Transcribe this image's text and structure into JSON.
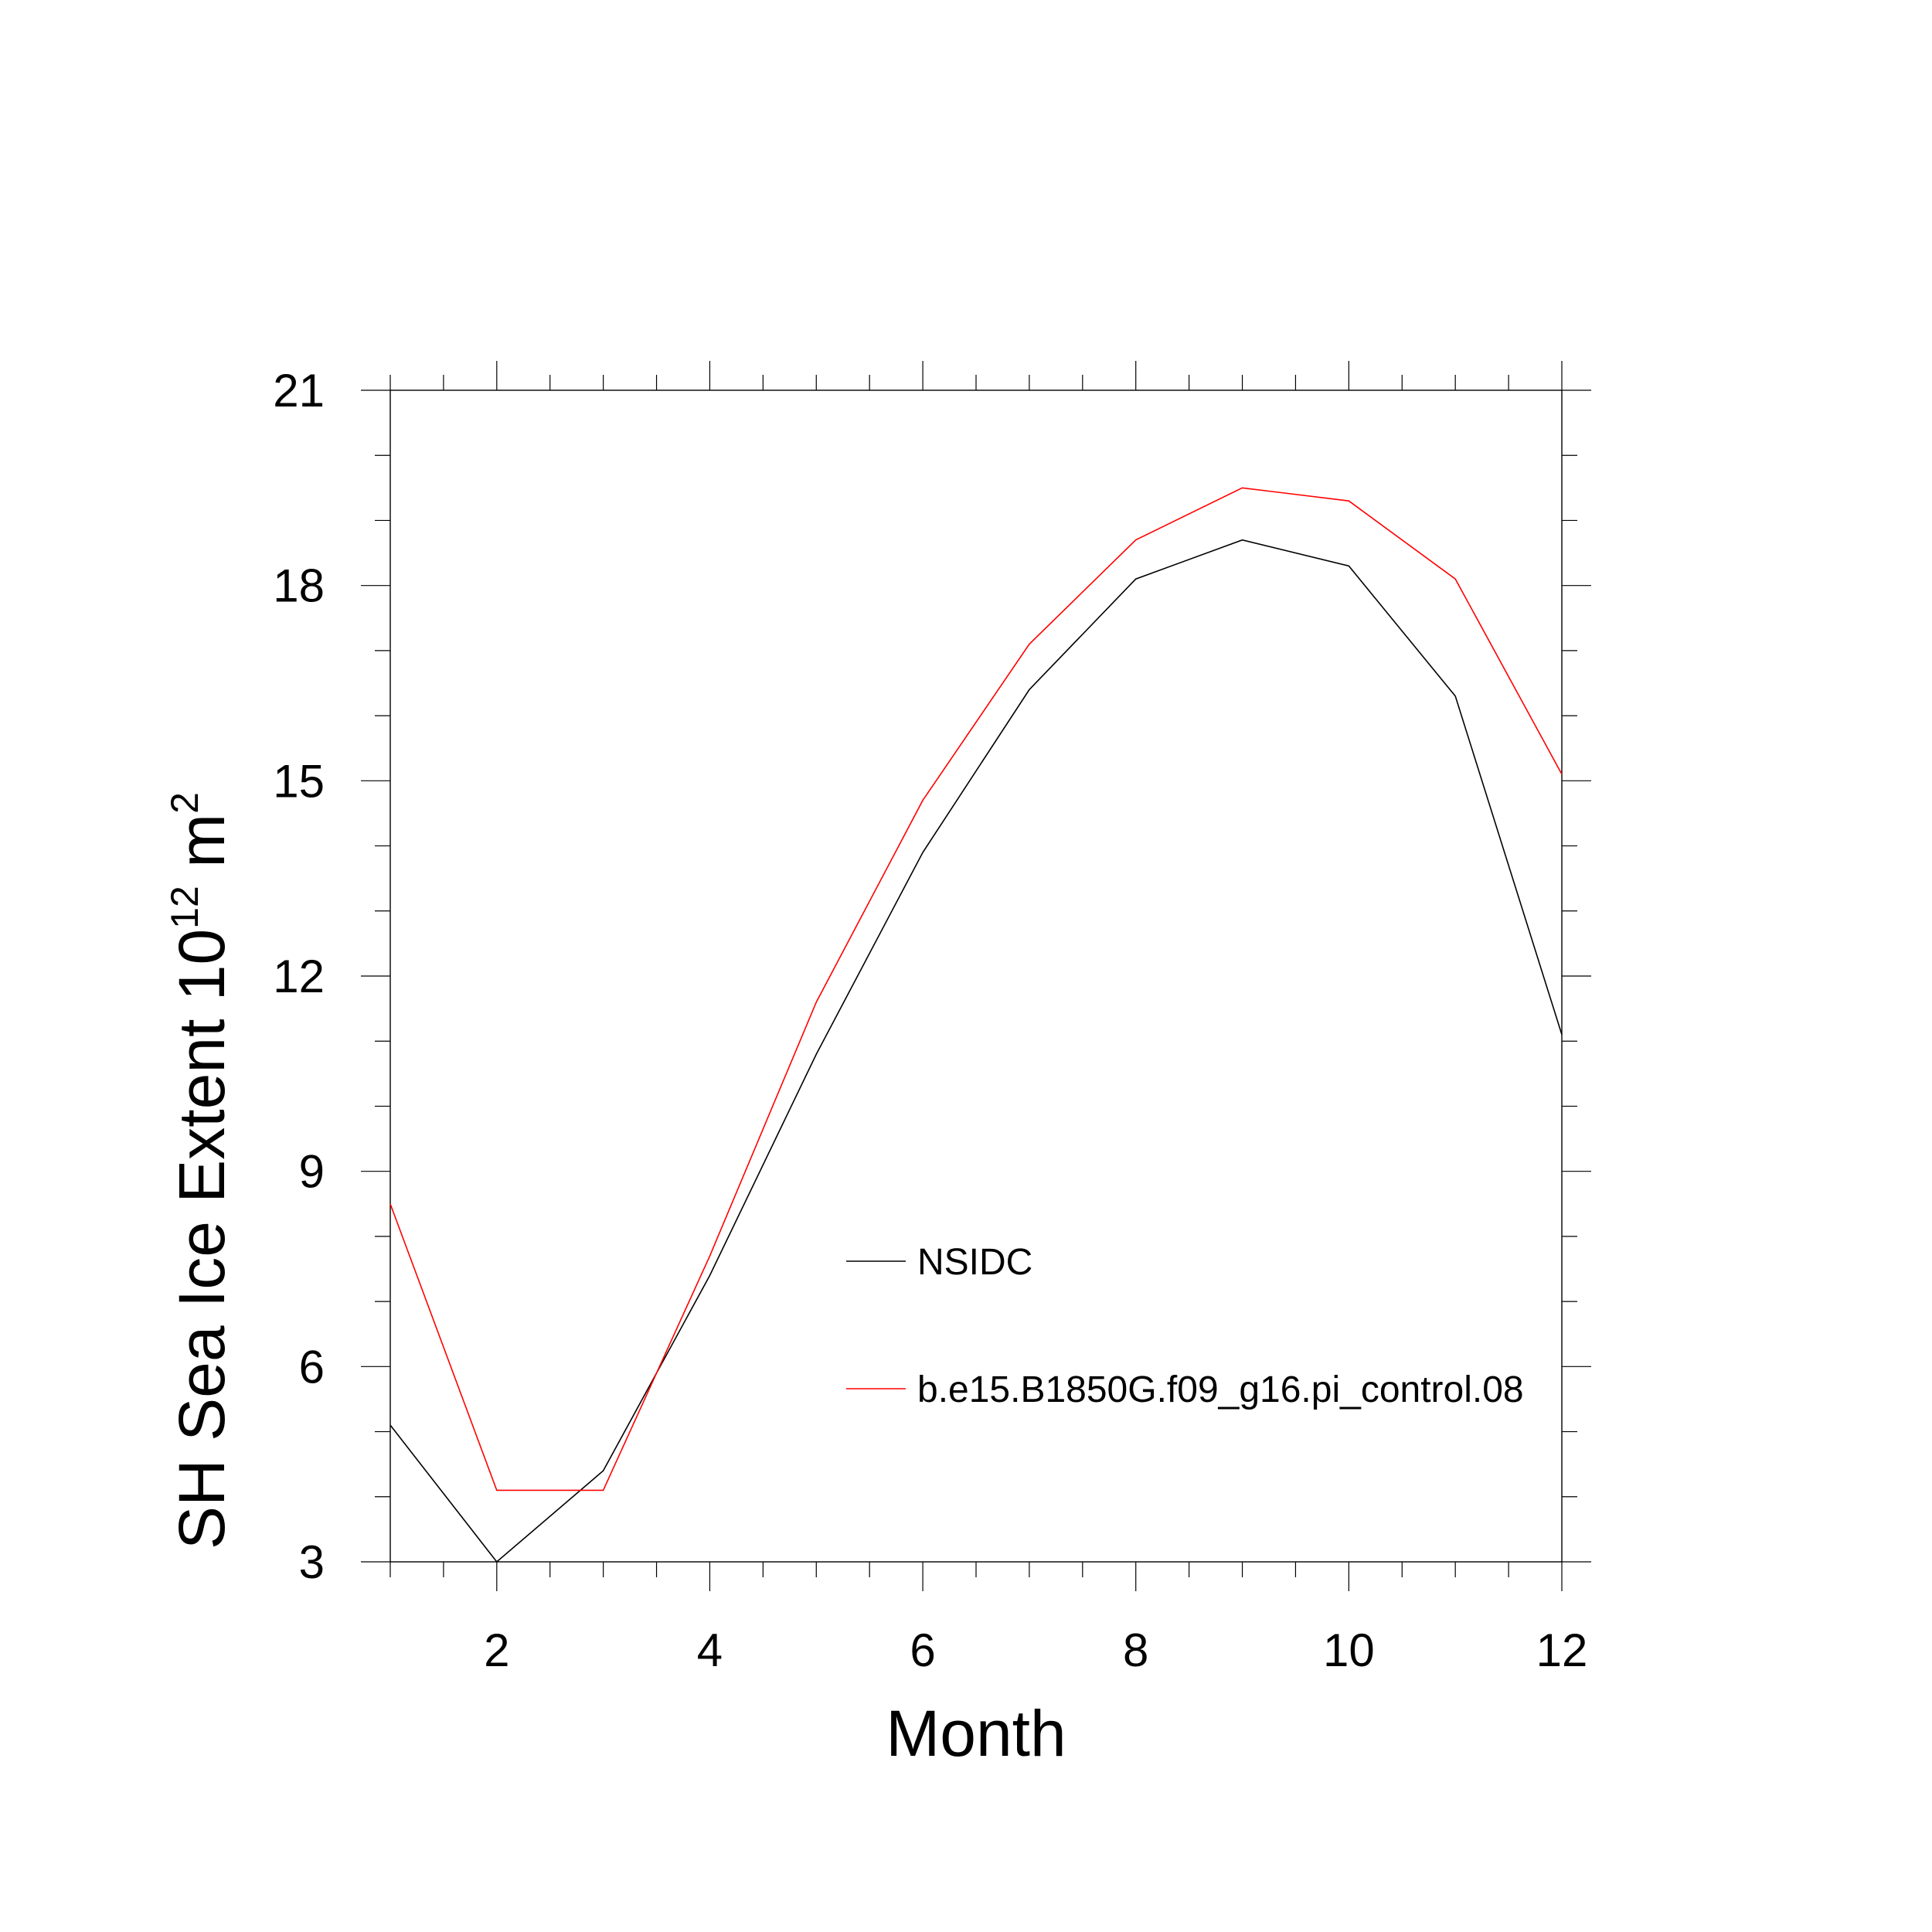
{
  "chart_data": {
    "type": "line",
    "xlabel": "Month",
    "ylabel": {
      "main": "SH Sea Ice Extent 10",
      "exponent": "12",
      "unit": "m",
      "unit_exponent": "2"
    },
    "xlim": [
      1,
      12
    ],
    "ylim": [
      3,
      21
    ],
    "x_ticks": [
      2,
      4,
      6,
      8,
      10,
      12
    ],
    "y_ticks": [
      3,
      6,
      9,
      12,
      15,
      18,
      21
    ],
    "grid": false,
    "legend_position": "center-right",
    "x": [
      1,
      2,
      3,
      4,
      5,
      6,
      7,
      8,
      9,
      10,
      11,
      12
    ],
    "series": [
      {
        "name": "NSIDC",
        "color": "#000000",
        "values": [
          5.1,
          3.0,
          4.4,
          7.4,
          10.8,
          13.9,
          16.4,
          18.1,
          18.7,
          18.3,
          16.3,
          11.1
        ]
      },
      {
        "name": "b.e15.B1850G.f09_g16.pi_control.08",
        "color": "#ff0000",
        "values": [
          8.5,
          4.1,
          4.1,
          7.7,
          11.6,
          14.7,
          17.1,
          18.7,
          19.5,
          19.3,
          18.1,
          15.1
        ]
      }
    ]
  }
}
